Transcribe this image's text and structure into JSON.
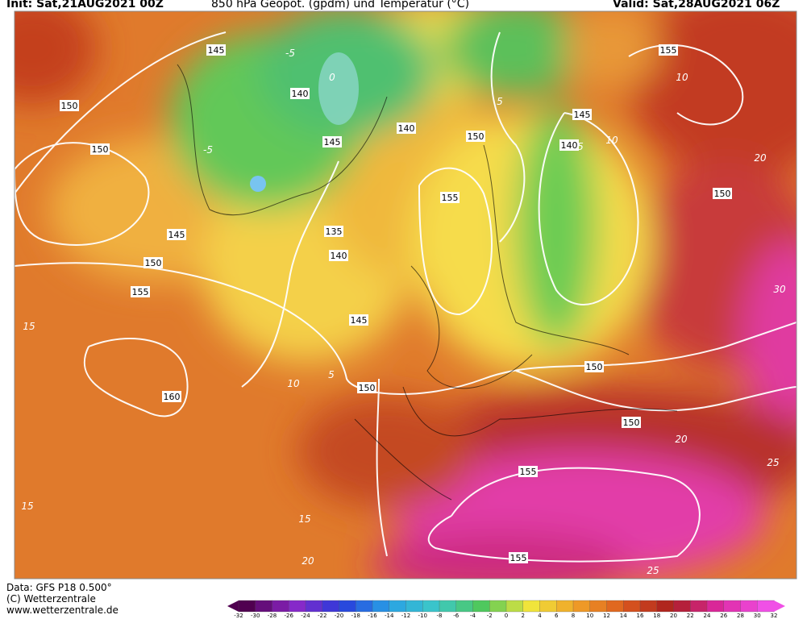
{
  "header": {
    "init": "Init: Sat,21AUG2021 00Z",
    "title": "850 hPa Geopot. (gpdm) und Temperatur (°C)",
    "valid": "Valid: Sat,28AUG2021 06Z"
  },
  "footer": {
    "source": "Data: GFS P18 0.500°",
    "copyright": "(C) Wetterzentrale",
    "url": "www.wetterzentrale.de"
  },
  "geopotential_labels": [
    145,
    150,
    150,
    145,
    150,
    155,
    160,
    140,
    145,
    135,
    140,
    145,
    150,
    140,
    150,
    155,
    145,
    140,
    155,
    150,
    150,
    150,
    155,
    155
  ],
  "temperature_labels": [
    -5,
    0,
    -5,
    10,
    20,
    10,
    5,
    10,
    15,
    15,
    15,
    20,
    25,
    25,
    20,
    30,
    5,
    5
  ],
  "colorbar": {
    "labels": [
      -32,
      -30,
      -28,
      -26,
      -24,
      -22,
      -20,
      -18,
      -16,
      -14,
      -12,
      -10,
      -8,
      -6,
      -4,
      -2,
      0,
      2,
      4,
      6,
      8,
      10,
      12,
      14,
      16,
      18,
      20,
      22,
      24,
      26,
      28,
      30,
      32
    ]
  }
}
